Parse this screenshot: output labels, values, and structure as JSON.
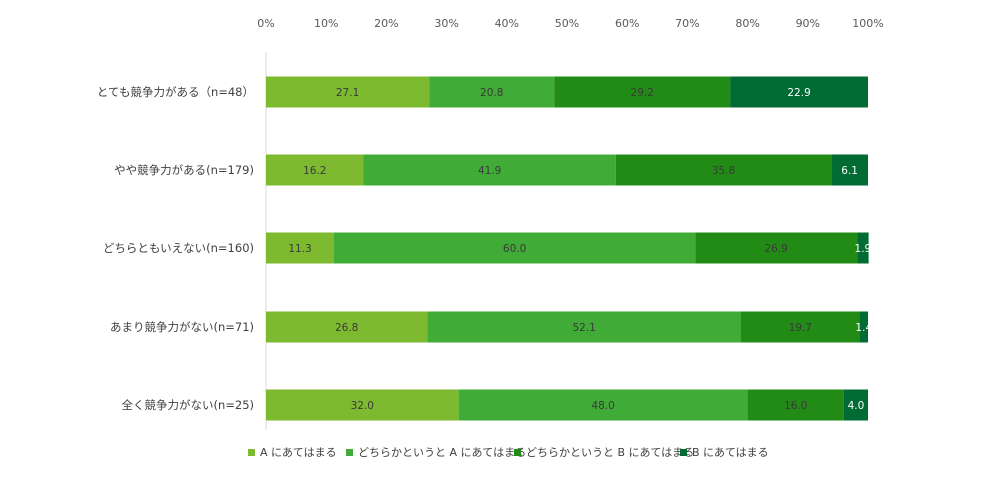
{
  "chart_data": {
    "type": "bar",
    "orientation": "horizontal",
    "stacked": true,
    "title": "",
    "xlabel": "",
    "ylabel": "",
    "xlim": [
      0,
      100
    ],
    "x_ticks": [
      "0%",
      "10%",
      "20%",
      "30%",
      "40%",
      "50%",
      "60%",
      "70%",
      "80%",
      "90%",
      "100%"
    ],
    "x_axis_position": "top",
    "grid": false,
    "legend_position": "bottom",
    "categories": [
      "とても競争力がある（n=48）",
      "やや競争力がある(n=179)",
      "どちらともいえない(n=160)",
      "あまり競争力がない(n=71)",
      "全く競争力がない(n=25)"
    ],
    "series": [
      {
        "name": "A にあてはまる",
        "color": "#7dba2f",
        "values": [
          27.1,
          16.2,
          11.3,
          26.8,
          32.0
        ],
        "labels": [
          "27.1",
          "16.2",
          "11.3",
          "26.8",
          "32.0"
        ]
      },
      {
        "name": "どちらかというと A にあてはまる",
        "color": "#40ab36",
        "values": [
          20.8,
          41.9,
          60.0,
          52.1,
          48.0
        ],
        "labels": [
          "20.8",
          "41.9",
          "60.0",
          "52.1",
          "48.0"
        ]
      },
      {
        "name": "どちらかというと B にあてはまる",
        "color": "#228b16",
        "values": [
          29.2,
          35.8,
          26.9,
          19.7,
          16.0
        ],
        "labels": [
          "29.2",
          "35.8",
          "26.9",
          "19.7",
          "16.0"
        ]
      },
      {
        "name": "B にあてはまる",
        "color": "#006b33",
        "values": [
          22.9,
          6.1,
          1.9,
          1.4,
          4.0
        ],
        "labels": [
          "22.9",
          "6.1",
          "1.9",
          "1.4",
          "4.0"
        ]
      }
    ]
  }
}
